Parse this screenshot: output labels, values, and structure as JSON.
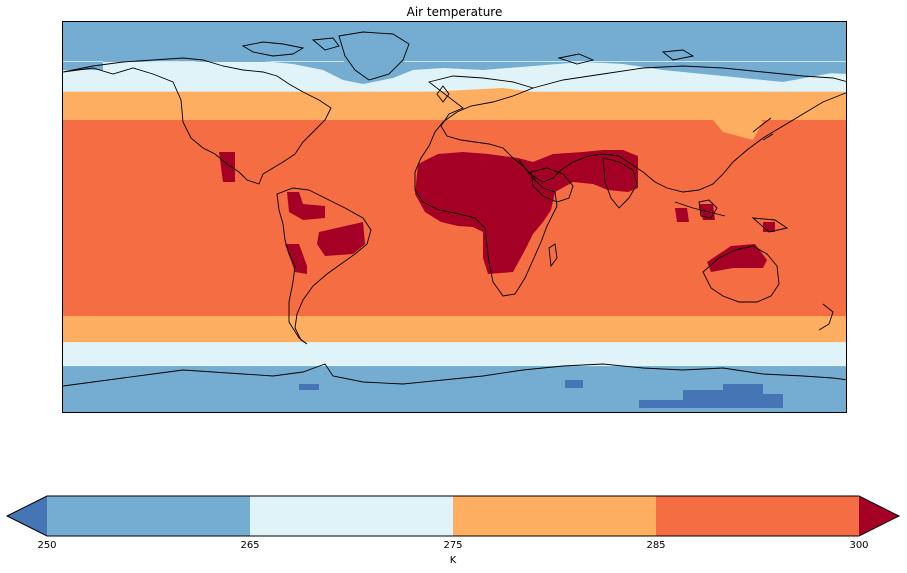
{
  "title": "Air temperature",
  "colorbar": {
    "ticks": [
      "250",
      "265",
      "275",
      "285",
      "300"
    ],
    "unit": "K"
  },
  "chart_data": {
    "type": "heatmap",
    "projection": "plate-carree",
    "variable": "Air temperature",
    "units": "K",
    "extent": {
      "lon": [
        -180,
        180
      ],
      "lat": [
        -90,
        90
      ]
    },
    "levels": [
      250,
      265,
      275,
      285,
      300
    ],
    "extend": "both",
    "bin_colors": {
      "below_250": "#4575b4",
      "250_265": "#74add1",
      "265_275": "#e0f3f8",
      "275_285": "#fdae61",
      "285_300": "#f46d43",
      "above_300": "#a50026"
    },
    "zonal_bands": [
      {
        "lat_range": [
          72,
          90
        ],
        "bin": "250_265"
      },
      {
        "lat_range": [
          58,
          72
        ],
        "bin": "265_275"
      },
      {
        "lat_range": [
          45,
          58
        ],
        "bin": "275_285"
      },
      {
        "lat_range": [
          -45,
          45
        ],
        "bin": "285_300"
      },
      {
        "lat_range": [
          -57,
          -45
        ],
        "bin": "275_285"
      },
      {
        "lat_range": [
          -68,
          -57
        ],
        "bin": "265_275"
      },
      {
        "lat_range": [
          -90,
          -68
        ],
        "bin": "250_265"
      }
    ],
    "hot_regions_above_300": [
      "Sahara / North Africa",
      "Arabian Peninsula",
      "India",
      "Central America",
      "Amazon",
      "Northern Australia",
      "Indonesia"
    ],
    "cold_regions_below_250": [
      "Antarctic interior",
      "Southern Ocean sea ice"
    ],
    "coastlines": true
  }
}
